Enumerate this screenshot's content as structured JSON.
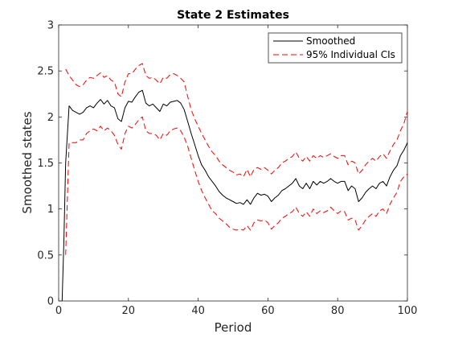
{
  "chart_data": {
    "type": "line",
    "title": "State 2 Estimates",
    "xlabel": "Period",
    "ylabel": "Smoothed states",
    "xlim": [
      0,
      100
    ],
    "ylim": [
      0,
      3
    ],
    "xticks": [
      0,
      20,
      40,
      60,
      80,
      100
    ],
    "yticks": [
      0,
      0.5,
      1,
      1.5,
      2,
      2.5,
      3
    ],
    "ytick_labels": [
      "0",
      "0.5",
      "1",
      "1.5",
      "2",
      "2.5",
      "3"
    ],
    "grid": false,
    "legend_position": "top-right",
    "series": [
      {
        "name": "Smoothed",
        "style": "solid",
        "color": "#000000",
        "x": [
          1,
          1.5,
          2,
          3,
          4,
          5,
          6,
          7,
          8,
          9,
          10,
          11,
          12,
          13,
          14,
          15,
          16,
          17,
          18,
          19,
          20,
          21,
          22,
          23,
          24,
          25,
          26,
          27,
          28,
          29,
          30,
          31,
          32,
          33,
          34,
          35,
          36,
          37,
          38,
          39,
          40,
          41,
          42,
          43,
          44,
          45,
          46,
          47,
          48,
          49,
          50,
          51,
          52,
          53,
          54,
          55,
          56,
          57,
          58,
          59,
          60,
          61,
          62,
          63,
          64,
          65,
          66,
          67,
          68,
          69,
          70,
          71,
          72,
          73,
          74,
          75,
          76,
          77,
          78,
          79,
          80,
          81,
          82,
          83,
          84,
          85,
          86,
          87,
          88,
          89,
          90,
          91,
          92,
          93,
          94,
          95,
          96,
          97,
          98,
          99,
          100
        ],
        "values": [
          0,
          0.65,
          1.5,
          2.12,
          2.07,
          2.05,
          2.03,
          2.05,
          2.1,
          2.12,
          2.1,
          2.15,
          2.19,
          2.14,
          2.18,
          2.12,
          2.1,
          1.98,
          1.95,
          2.1,
          2.17,
          2.16,
          2.22,
          2.27,
          2.29,
          2.15,
          2.12,
          2.14,
          2.1,
          2.06,
          2.14,
          2.12,
          2.16,
          2.17,
          2.18,
          2.15,
          2.08,
          1.95,
          1.82,
          1.7,
          1.58,
          1.48,
          1.42,
          1.35,
          1.3,
          1.25,
          1.19,
          1.15,
          1.12,
          1.1,
          1.08,
          1.06,
          1.07,
          1.05,
          1.1,
          1.05,
          1.12,
          1.17,
          1.15,
          1.16,
          1.14,
          1.08,
          1.12,
          1.15,
          1.2,
          1.22,
          1.25,
          1.28,
          1.33,
          1.25,
          1.22,
          1.28,
          1.22,
          1.3,
          1.26,
          1.3,
          1.28,
          1.3,
          1.33,
          1.3,
          1.28,
          1.3,
          1.3,
          1.2,
          1.25,
          1.22,
          1.08,
          1.12,
          1.18,
          1.22,
          1.25,
          1.22,
          1.28,
          1.3,
          1.25,
          1.35,
          1.42,
          1.47,
          1.58,
          1.64,
          1.72
        ]
      },
      {
        "name": "95% Individual CIs",
        "style": "dashed",
        "color": "#ff0000",
        "x": [
          2,
          3,
          4,
          5,
          6,
          7,
          8,
          9,
          10,
          11,
          12,
          13,
          14,
          15,
          16,
          17,
          18,
          19,
          20,
          21,
          22,
          23,
          24,
          25,
          26,
          27,
          28,
          29,
          30,
          31,
          32,
          33,
          34,
          35,
          36,
          37,
          38,
          39,
          40,
          41,
          42,
          43,
          44,
          45,
          46,
          47,
          48,
          49,
          50,
          51,
          52,
          53,
          54,
          55,
          56,
          57,
          58,
          59,
          60,
          61,
          62,
          63,
          64,
          65,
          66,
          67,
          68,
          69,
          70,
          71,
          72,
          73,
          74,
          75,
          76,
          77,
          78,
          79,
          80,
          81,
          82,
          83,
          84,
          85,
          86,
          87,
          88,
          89,
          90,
          91,
          92,
          93,
          94,
          95,
          96,
          97,
          98,
          99,
          100
        ],
        "values": [
          2.52,
          2.45,
          2.4,
          2.35,
          2.33,
          2.35,
          2.4,
          2.43,
          2.42,
          2.45,
          2.48,
          2.43,
          2.45,
          2.4,
          2.38,
          2.25,
          2.22,
          2.38,
          2.47,
          2.47,
          2.52,
          2.56,
          2.58,
          2.45,
          2.42,
          2.43,
          2.4,
          2.36,
          2.43,
          2.42,
          2.46,
          2.47,
          2.45,
          2.42,
          2.38,
          2.22,
          2.08,
          1.98,
          1.9,
          1.82,
          1.75,
          1.68,
          1.62,
          1.58,
          1.52,
          1.48,
          1.45,
          1.42,
          1.4,
          1.37,
          1.38,
          1.35,
          1.43,
          1.35,
          1.43,
          1.45,
          1.43,
          1.45,
          1.42,
          1.38,
          1.42,
          1.45,
          1.5,
          1.52,
          1.55,
          1.57,
          1.62,
          1.55,
          1.52,
          1.57,
          1.52,
          1.58,
          1.55,
          1.58,
          1.56,
          1.58,
          1.6,
          1.57,
          1.55,
          1.58,
          1.58,
          1.48,
          1.52,
          1.5,
          1.38,
          1.42,
          1.48,
          1.52,
          1.55,
          1.52,
          1.57,
          1.6,
          1.55,
          1.63,
          1.7,
          1.75,
          1.85,
          1.93,
          2.06
        ]
      },
      {
        "name": "",
        "style": "dashed",
        "color": "#ff0000",
        "x": [
          2,
          3,
          4,
          5,
          6,
          7,
          8,
          9,
          10,
          11,
          12,
          13,
          14,
          15,
          16,
          17,
          18,
          19,
          20,
          21,
          22,
          23,
          24,
          25,
          26,
          27,
          28,
          29,
          30,
          31,
          32,
          33,
          34,
          35,
          36,
          37,
          38,
          39,
          40,
          41,
          42,
          43,
          44,
          45,
          46,
          47,
          48,
          49,
          50,
          51,
          52,
          53,
          54,
          55,
          56,
          57,
          58,
          59,
          60,
          61,
          62,
          63,
          64,
          65,
          66,
          67,
          68,
          69,
          70,
          71,
          72,
          73,
          74,
          75,
          76,
          77,
          78,
          79,
          80,
          81,
          82,
          83,
          84,
          85,
          86,
          87,
          88,
          89,
          90,
          91,
          92,
          93,
          94,
          95,
          96,
          97,
          98,
          99,
          100
        ],
        "values": [
          0.5,
          1.72,
          1.72,
          1.72,
          1.75,
          1.75,
          1.82,
          1.85,
          1.87,
          1.85,
          1.9,
          1.85,
          1.88,
          1.85,
          1.8,
          1.7,
          1.65,
          1.82,
          1.9,
          1.88,
          1.92,
          1.97,
          2.0,
          1.85,
          1.82,
          1.82,
          1.8,
          1.75,
          1.82,
          1.8,
          1.85,
          1.87,
          1.88,
          1.85,
          1.78,
          1.68,
          1.55,
          1.42,
          1.3,
          1.2,
          1.12,
          1.05,
          0.98,
          0.95,
          0.9,
          0.87,
          0.84,
          0.8,
          0.78,
          0.77,
          0.78,
          0.77,
          0.82,
          0.77,
          0.85,
          0.88,
          0.87,
          0.88,
          0.85,
          0.78,
          0.82,
          0.85,
          0.9,
          0.92,
          0.95,
          0.97,
          1.02,
          0.95,
          0.92,
          0.97,
          0.92,
          1.0,
          0.95,
          0.98,
          0.96,
          0.98,
          1.02,
          0.98,
          0.95,
          0.98,
          0.97,
          0.88,
          0.9,
          0.88,
          0.77,
          0.82,
          0.88,
          0.92,
          0.95,
          0.92,
          0.98,
          1.0,
          0.95,
          1.05,
          1.12,
          1.18,
          1.3,
          1.35,
          1.38
        ]
      }
    ],
    "legend": {
      "entries": [
        {
          "label": "Smoothed",
          "style": "solid",
          "color": "#000000"
        },
        {
          "label": "95% Individual CIs",
          "style": "dashed",
          "color": "#ff0000"
        }
      ]
    }
  }
}
